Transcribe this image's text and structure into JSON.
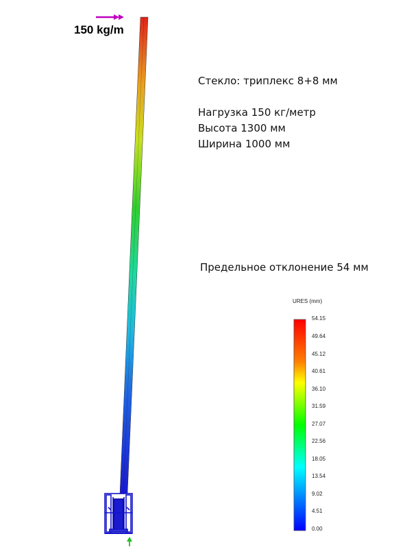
{
  "load": {
    "label": "150 kg/m",
    "arrow_color": "#c000c0"
  },
  "info": {
    "glass": "Стекло: триплекс 8+8 мм",
    "load_text": "Нагрузка 150 кг/метр",
    "height": "Высота 1300 мм",
    "width": "Ширина 1000 мм",
    "max_deflection": "Предельное отклонение 54 мм"
  },
  "legend": {
    "title": "URES (mm)",
    "ticks": [
      "54.15",
      "49.64",
      "45.12",
      "40.61",
      "36.10",
      "31.59",
      "27.07",
      "22.56",
      "18.05",
      "13.54",
      "9.02",
      "4.51",
      "0.00"
    ],
    "colors": [
      "#ff0000",
      "#ff8000",
      "#ffff00",
      "#00ff00",
      "#00ffff",
      "#0000ff"
    ]
  },
  "colors": {
    "glass_top": "#e0241c",
    "glass_bottom": "#1a1ad0",
    "base_profile": "#1414c8",
    "support_arrow": "#20c020"
  }
}
